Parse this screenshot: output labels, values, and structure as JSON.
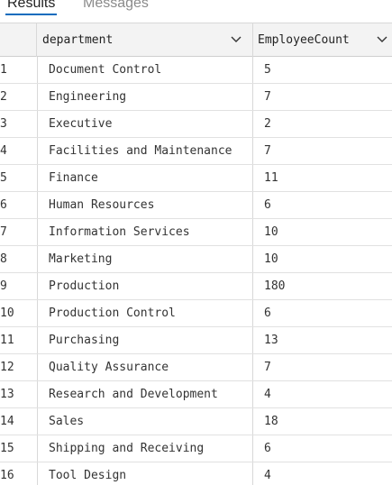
{
  "tabs": {
    "results_label": "Results",
    "messages_label": "Messages"
  },
  "columns": [
    {
      "label": "department"
    },
    {
      "label": "EmployeeCount"
    }
  ],
  "rows": [
    {
      "index": "1",
      "department": "Document Control",
      "count": "5"
    },
    {
      "index": "2",
      "department": "Engineering",
      "count": "7"
    },
    {
      "index": "3",
      "department": "Executive",
      "count": "2"
    },
    {
      "index": "4",
      "department": "Facilities and Maintenance",
      "count": "7"
    },
    {
      "index": "5",
      "department": "Finance",
      "count": "11"
    },
    {
      "index": "6",
      "department": "Human Resources",
      "count": "6"
    },
    {
      "index": "7",
      "department": "Information Services",
      "count": "10"
    },
    {
      "index": "8",
      "department": "Marketing",
      "count": "10"
    },
    {
      "index": "9",
      "department": "Production",
      "count": "180"
    },
    {
      "index": "10",
      "department": "Production Control",
      "count": "6"
    },
    {
      "index": "11",
      "department": "Purchasing",
      "count": "13"
    },
    {
      "index": "12",
      "department": "Quality Assurance",
      "count": "7"
    },
    {
      "index": "13",
      "department": "Research and Development",
      "count": "4"
    },
    {
      "index": "14",
      "department": "Sales",
      "count": "18"
    },
    {
      "index": "15",
      "department": "Shipping and Receiving",
      "count": "6"
    },
    {
      "index": "16",
      "department": "Tool Design",
      "count": "4"
    }
  ],
  "colors": {
    "accent": "#0f6cbd",
    "header_bg": "#f3f3f3",
    "grid_line": "#e1e1e1"
  },
  "icons": {
    "column_sort": "chevron-down-icon"
  }
}
